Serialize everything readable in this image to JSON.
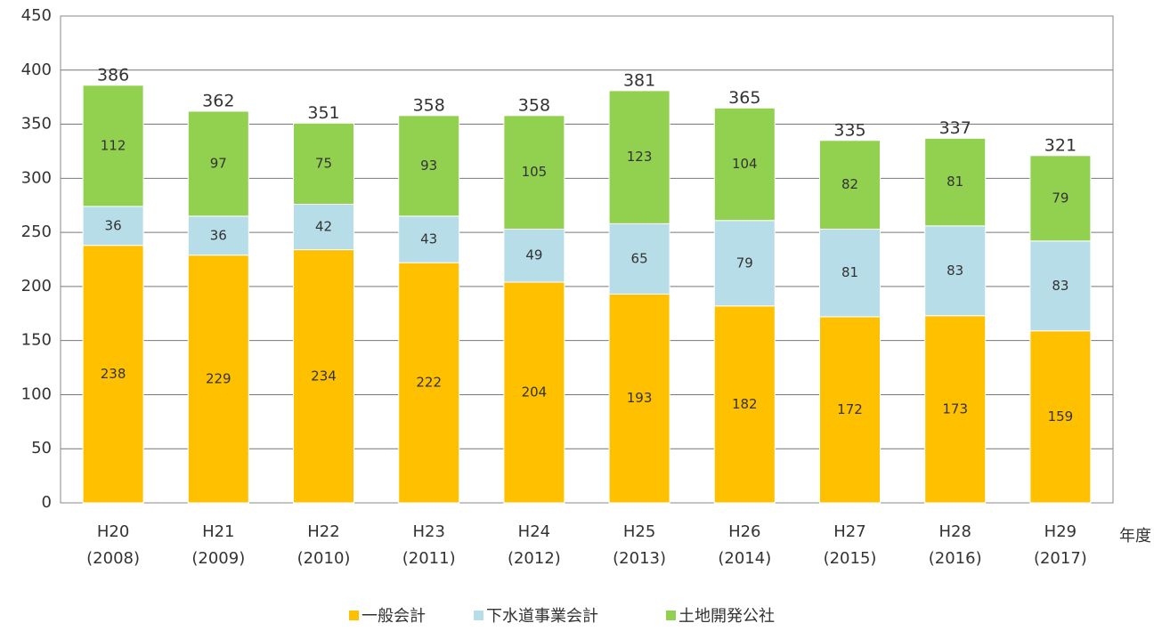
{
  "chart_data": {
    "type": "stacked_bar",
    "categories": [
      "H20\n(2008)",
      "H21\n(2009)",
      "H22\n(2010)",
      "H23\n(2011)",
      "H24\n(2012)",
      "H25\n(2013)",
      "H26\n(2014)",
      "H27\n(2015)",
      "H28\n(2016)",
      "H29\n(2017)"
    ],
    "series": [
      {
        "name": "一般会計",
        "color": "#ffc000",
        "values": [
          238,
          229,
          234,
          222,
          204,
          193,
          182,
          172,
          173,
          159
        ]
      },
      {
        "name": "下水道事業会計",
        "color": "#b7dde8",
        "values": [
          36,
          36,
          42,
          43,
          49,
          65,
          79,
          81,
          83,
          83
        ]
      },
      {
        "name": "土地開発公社",
        "color": "#92d050",
        "values": [
          112,
          97,
          75,
          93,
          105,
          123,
          104,
          82,
          81,
          79
        ]
      }
    ],
    "totals": [
      386,
      362,
      351,
      358,
      358,
      381,
      365,
      335,
      337,
      321
    ],
    "x_label": "年度",
    "ylim": [
      0,
      450
    ],
    "yticks": [
      0,
      50,
      100,
      150,
      200,
      250,
      300,
      350,
      400,
      450
    ],
    "grid": true
  }
}
